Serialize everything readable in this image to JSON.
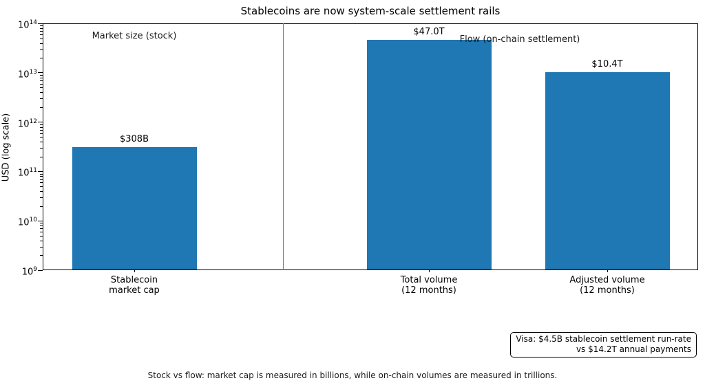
{
  "chart_data": {
    "type": "bar",
    "title": "Stablecoins are now system-scale settlement rails",
    "ylabel": "USD (log scale)",
    "xlabel": "",
    "yscale": "log",
    "ylim": [
      1000000000,
      100000000000000
    ],
    "y_tick_exponents": [
      9,
      10,
      11,
      12,
      13,
      14
    ],
    "grid": false,
    "legend": "none",
    "categories": [
      "Stablecoin\nmarket cap",
      "Total volume\n(12 months)",
      "Adjusted volume\n(12 months)"
    ],
    "values": [
      308000000000,
      47000000000000,
      10400000000000
    ],
    "bar_value_labels": [
      "$308B",
      "$47.0T",
      "$10.4T"
    ],
    "bar_color": "#1f77b4",
    "divider_color": "#4682b4",
    "group_annotations": [
      "Market size (stock)",
      "Flow (on-chain settlement)"
    ]
  },
  "annotation_box": {
    "line1": "Visa: $4.5B stablecoin settlement run-rate",
    "line2": "vs $14.2T annual payments"
  },
  "caption": "Stock vs flow: market cap is measured in billions, while on-chain volumes are measured in trillions."
}
